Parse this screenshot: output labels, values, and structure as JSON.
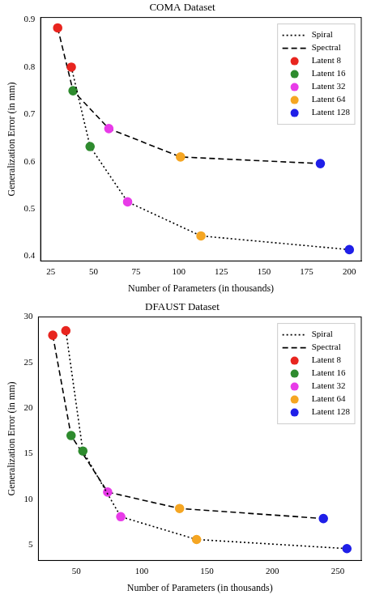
{
  "chart_data": [
    {
      "type": "line",
      "title": "COMA Dataset",
      "x_label": "Number of Parameters (in thousands)",
      "y_label": "Generalization Error (in mm)",
      "xlim": [
        19,
        207
      ],
      "xticks": [
        25,
        50,
        75,
        100,
        125,
        150,
        175,
        200
      ],
      "ylim": [
        0.39,
        0.905
      ],
      "yticks": [
        0.4,
        0.5,
        0.6,
        0.7,
        0.8,
        0.9
      ],
      "grid": false,
      "legend": "upper right",
      "point_groups": [
        {
          "name": "Latent 8",
          "color": "#e8251f"
        },
        {
          "name": "Latent 16",
          "color": "#2e8b2e"
        },
        {
          "name": "Latent 32",
          "color": "#e83be8"
        },
        {
          "name": "Latent 64",
          "color": "#f5a623"
        },
        {
          "name": "Latent 128",
          "color": "#1f1fe8"
        }
      ],
      "series": [
        {
          "name": "Spiral",
          "color": "#000000",
          "line_style": "dotted",
          "marker": "circle",
          "x": [
            37,
            48,
            70,
            113,
            200
          ],
          "values": [
            0.8,
            0.632,
            0.515,
            0.443,
            0.414
          ],
          "colors": [
            "#e8251f",
            "#2e8b2e",
            "#e83be8",
            "#f5a623",
            "#1f1fe8"
          ]
        },
        {
          "name": "Spectral",
          "color": "#000000",
          "line_style": "dashed",
          "marker": "circle",
          "x": [
            29,
            38,
            59,
            101,
            183
          ],
          "values": [
            0.883,
            0.75,
            0.67,
            0.61,
            0.596
          ],
          "colors": [
            "#e8251f",
            "#2e8b2e",
            "#e83be8",
            "#f5a623",
            "#1f1fe8"
          ]
        }
      ]
    },
    {
      "type": "line",
      "title": "DFAUST Dataset",
      "x_label": "Number of Parameters (in thousands)",
      "y_label": "Generalization Error (in mm)",
      "xlim": [
        21,
        268
      ],
      "xticks": [
        50,
        100,
        150,
        200,
        250
      ],
      "ylim": [
        3.3,
        30
      ],
      "yticks": [
        5,
        10,
        15,
        20,
        25,
        30
      ],
      "grid": false,
      "legend": "upper right",
      "point_groups": [
        {
          "name": "Latent 8",
          "color": "#e8251f"
        },
        {
          "name": "Latent 16",
          "color": "#2e8b2e"
        },
        {
          "name": "Latent 32",
          "color": "#e83be8"
        },
        {
          "name": "Latent 64",
          "color": "#f5a623"
        },
        {
          "name": "Latent 128",
          "color": "#1f1fe8"
        }
      ],
      "series": [
        {
          "name": "Spiral",
          "color": "#000000",
          "line_style": "dotted",
          "marker": "circle",
          "x": [
            42,
            55,
            84,
            142,
            257
          ],
          "values": [
            28.5,
            15.3,
            8.1,
            5.6,
            4.6
          ],
          "colors": [
            "#e8251f",
            "#2e8b2e",
            "#e83be8",
            "#f5a623",
            "#1f1fe8"
          ]
        },
        {
          "name": "Spectral",
          "color": "#000000",
          "line_style": "dashed",
          "marker": "circle",
          "x": [
            32,
            46,
            74,
            129,
            239
          ],
          "values": [
            28.0,
            17.0,
            10.8,
            9.0,
            7.9
          ],
          "colors": [
            "#e8251f",
            "#2e8b2e",
            "#e83be8",
            "#f5a623",
            "#1f1fe8"
          ]
        }
      ]
    }
  ]
}
